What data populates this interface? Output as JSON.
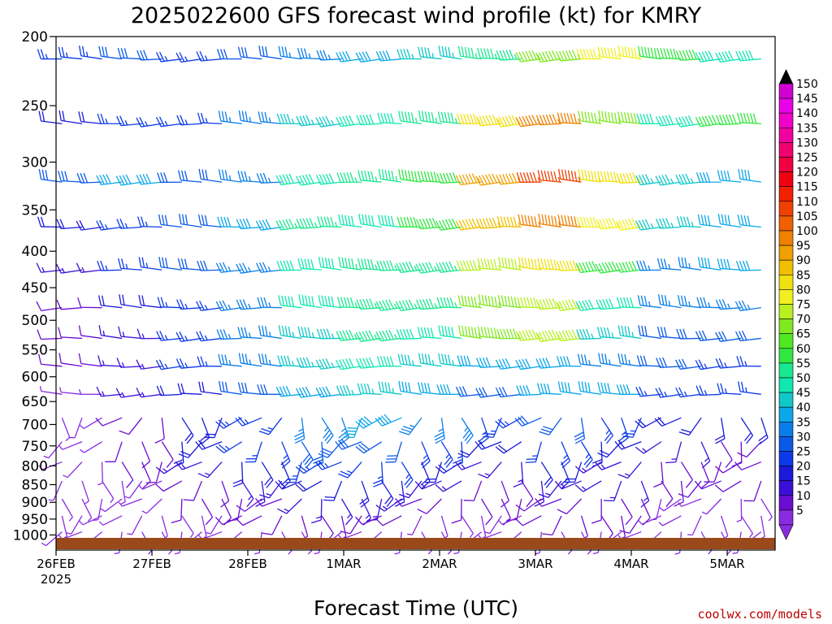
{
  "chart_data": {
    "type": "wind-barb-profile",
    "title": "2025022600 GFS forecast wind profile (kt) for KMRY",
    "xlabel": "Forecast Time (UTC)",
    "ylabel": "",
    "credit": "coolwx.com/models",
    "y_unit": "hPa",
    "y_scale": "log",
    "ylim": [
      1050,
      200
    ],
    "y_ticks": [
      200,
      250,
      300,
      350,
      400,
      450,
      500,
      550,
      600,
      650,
      700,
      750,
      800,
      850,
      900,
      950,
      1000
    ],
    "x_range_days": [
      0,
      7.5
    ],
    "x_ticks": [
      {
        "label": "26FEB",
        "sub": "2025",
        "day": 0
      },
      {
        "label": "27FEB",
        "sub": "",
        "day": 1
      },
      {
        "label": "28FEB",
        "sub": "",
        "day": 2
      },
      {
        "label": "1MAR",
        "sub": "",
        "day": 3
      },
      {
        "label": "2MAR",
        "sub": "",
        "day": 4
      },
      {
        "label": "3MAR",
        "sub": "",
        "day": 5
      },
      {
        "label": "4MAR",
        "sub": "",
        "day": 6
      },
      {
        "label": "5MAR",
        "sub": "",
        "day": 7
      }
    ],
    "colorbar": {
      "levels": [
        5,
        10,
        15,
        20,
        25,
        30,
        35,
        40,
        45,
        50,
        55,
        60,
        65,
        70,
        75,
        80,
        85,
        90,
        95,
        100,
        105,
        110,
        115,
        120,
        125,
        130,
        135,
        140,
        145,
        150
      ],
      "colors": [
        "#8a2be2",
        "#6a0dd0",
        "#3a10d8",
        "#1a1ad8",
        "#0c3ae8",
        "#0a5ae8",
        "#0a7ee8",
        "#0aa8e8",
        "#10c8c8",
        "#10e8b0",
        "#18e890",
        "#30e840",
        "#50e820",
        "#80e820",
        "#b8f020",
        "#f0f020",
        "#f0e010",
        "#f0c000",
        "#f0a000",
        "#f08000",
        "#f06000",
        "#f04000",
        "#f02000",
        "#f00010",
        "#f00040",
        "#f00070",
        "#f000a0",
        "#f000c8",
        "#e800e8",
        "#d000d0"
      ],
      "arrow_top_color": "#000000",
      "arrow_bottom_color": "#8a2be2"
    },
    "surface_color": "#9a4a1a",
    "rows": [
      {
        "p": 215,
        "speed": [
          25,
          30,
          25,
          30,
          35,
          40,
          45,
          55,
          70,
          80,
          60,
          50
        ]
      },
      {
        "p": 265,
        "speed": [
          20,
          25,
          25,
          35,
          45,
          50,
          55,
          85,
          100,
          70,
          50,
          60
        ]
      },
      {
        "p": 320,
        "speed": [
          30,
          40,
          30,
          35,
          50,
          55,
          60,
          95,
          110,
          85,
          45,
          40
        ]
      },
      {
        "p": 370,
        "speed": [
          20,
          25,
          30,
          40,
          55,
          50,
          60,
          90,
          100,
          80,
          45,
          40
        ]
      },
      {
        "p": 425,
        "speed": [
          15,
          25,
          30,
          35,
          50,
          55,
          55,
          75,
          85,
          60,
          35,
          40
        ]
      },
      {
        "p": 480,
        "speed": [
          10,
          20,
          25,
          35,
          50,
          55,
          55,
          70,
          75,
          50,
          35,
          35
        ]
      },
      {
        "p": 530,
        "speed": [
          10,
          15,
          25,
          35,
          45,
          55,
          50,
          70,
          75,
          45,
          30,
          30
        ]
      },
      {
        "p": 580,
        "speed": [
          10,
          15,
          25,
          35,
          45,
          50,
          45,
          40,
          40,
          35,
          30,
          25
        ]
      },
      {
        "p": 635,
        "speed": [
          5,
          15,
          20,
          30,
          40,
          45,
          40,
          30,
          40,
          40,
          25,
          25
        ]
      },
      {
        "p": 685,
        "speed": [
          5,
          10,
          20,
          25,
          35,
          40,
          35,
          25,
          30,
          25,
          20,
          20
        ]
      },
      {
        "p": 740,
        "speed": [
          5,
          10,
          20,
          25,
          30,
          30,
          25,
          20,
          25,
          20,
          15,
          10
        ]
      },
      {
        "p": 790,
        "speed": [
          5,
          10,
          15,
          20,
          25,
          25,
          20,
          15,
          20,
          15,
          10,
          10
        ]
      },
      {
        "p": 840,
        "speed": [
          5,
          5,
          10,
          15,
          20,
          20,
          15,
          10,
          15,
          15,
          10,
          10
        ]
      },
      {
        "p": 890,
        "speed": [
          5,
          5,
          10,
          10,
          15,
          15,
          10,
          10,
          10,
          10,
          5,
          5
        ]
      },
      {
        "p": 940,
        "speed": [
          5,
          5,
          5,
          10,
          10,
          10,
          5,
          5,
          10,
          10,
          5,
          5
        ]
      },
      {
        "p": 990,
        "speed": [
          5,
          5,
          5,
          5,
          5,
          5,
          5,
          5,
          5,
          5,
          5,
          5
        ]
      }
    ]
  }
}
